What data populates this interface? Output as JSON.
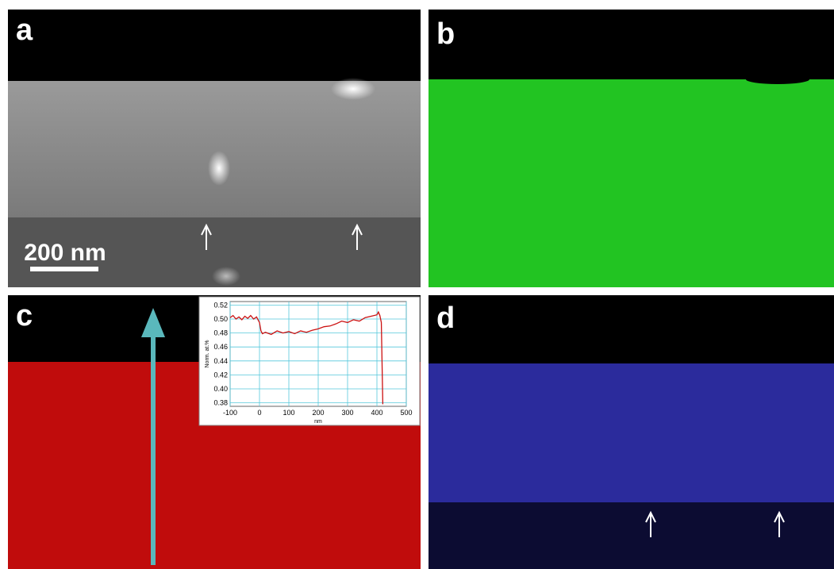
{
  "panels": {
    "labels": [
      "a",
      "b",
      "c",
      "d"
    ],
    "scale_bar": "200 nm"
  },
  "chart_data": {
    "type": "line",
    "ylabel": "Norm. at.%",
    "xlabel": "nm",
    "x": [
      -100,
      -90,
      -80,
      -70,
      -60,
      -50,
      -40,
      -30,
      -20,
      -10,
      0,
      5,
      10,
      20,
      40,
      60,
      80,
      100,
      120,
      140,
      160,
      180,
      200,
      220,
      240,
      260,
      280,
      300,
      320,
      340,
      360,
      380,
      400,
      405,
      410,
      415,
      420
    ],
    "values": [
      0.502,
      0.505,
      0.5,
      0.503,
      0.499,
      0.504,
      0.501,
      0.505,
      0.5,
      0.503,
      0.495,
      0.483,
      0.479,
      0.481,
      0.478,
      0.483,
      0.48,
      0.482,
      0.479,
      0.483,
      0.481,
      0.484,
      0.486,
      0.489,
      0.49,
      0.493,
      0.497,
      0.495,
      0.499,
      0.497,
      0.502,
      0.504,
      0.506,
      0.51,
      0.505,
      0.495,
      0.378
    ],
    "color": "#cc1111",
    "xlim": [
      -100,
      500
    ],
    "xticks": [
      -100,
      0,
      100,
      200,
      300,
      400,
      500
    ],
    "ylim": [
      0.375,
      0.525
    ],
    "yticks": [
      0.38,
      {
        "value": 0.4,
        "label": "0.40"
      },
      0.42,
      0.44,
      0.46,
      0.48,
      {
        "value": 0.5,
        "label": "0.50"
      },
      0.52
    ],
    "grid": true,
    "grid_color": "#55c8dc"
  }
}
